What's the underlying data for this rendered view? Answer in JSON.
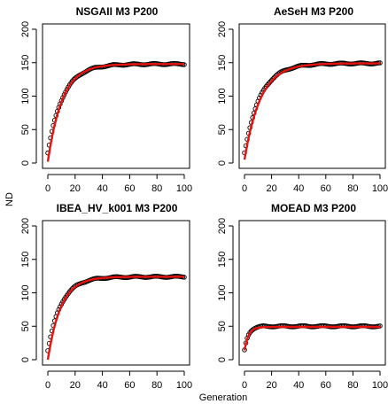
{
  "figure": {
    "xlabel": "Generation",
    "ylabel": "ND"
  },
  "chart_data": [
    {
      "type": "scatter",
      "title": "NSGAII M3  P200",
      "xlim": [
        0,
        100
      ],
      "ylim": [
        0,
        200
      ],
      "x_ticks": [
        0,
        20,
        40,
        60,
        80,
        100
      ],
      "y_ticks": [
        0,
        50,
        100,
        150,
        200
      ],
      "series": [
        {
          "kind": "points",
          "color": "#000000",
          "model": {
            "y0": 15,
            "yinf": 148,
            "k": 0.09
          }
        },
        {
          "kind": "fitted-curve",
          "color": "#e8120f",
          "model": {
            "y0": 2,
            "yinf": 148,
            "k": 0.095
          }
        }
      ]
    },
    {
      "type": "scatter",
      "title": "AeSeH M3  P200",
      "xlim": [
        0,
        100
      ],
      "ylim": [
        0,
        200
      ],
      "x_ticks": [
        0,
        20,
        40,
        60,
        80,
        100
      ],
      "y_ticks": [
        0,
        50,
        100,
        150,
        200
      ],
      "series": [
        {
          "kind": "points",
          "color": "#000000",
          "model": {
            "y0": 15,
            "yinf": 149,
            "k": 0.085
          }
        },
        {
          "kind": "fitted-curve",
          "color": "#e8120f",
          "model": {
            "y0": 5,
            "yinf": 149,
            "k": 0.085
          }
        }
      ]
    },
    {
      "type": "scatter",
      "title": "IBEA_HV_k001 M3  P200",
      "xlim": [
        0,
        100
      ],
      "ylim": [
        0,
        200
      ],
      "x_ticks": [
        0,
        20,
        40,
        60,
        80,
        100
      ],
      "y_ticks": [
        0,
        50,
        100,
        150,
        200
      ],
      "series": [
        {
          "kind": "points",
          "color": "#000000",
          "model": {
            "y0": 14,
            "yinf": 124,
            "k": 0.1
          }
        },
        {
          "kind": "fitted-curve",
          "color": "#e8120f",
          "model": {
            "y0": 0,
            "yinf": 124,
            "k": 0.105
          }
        }
      ]
    },
    {
      "type": "scatter",
      "title": "MOEAD M3  P200",
      "xlim": [
        0,
        100
      ],
      "ylim": [
        0,
        200
      ],
      "x_ticks": [
        0,
        20,
        40,
        60,
        80,
        100
      ],
      "y_ticks": [
        0,
        50,
        100,
        150,
        200
      ],
      "series": [
        {
          "kind": "points",
          "color": "#000000",
          "model": {
            "y0": 14,
            "yinf": 50,
            "k": 0.35
          }
        },
        {
          "kind": "fitted-curve",
          "color": "#e8120f",
          "model": {
            "y0": 14,
            "yinf": 49,
            "k": 0.33
          }
        }
      ]
    }
  ]
}
